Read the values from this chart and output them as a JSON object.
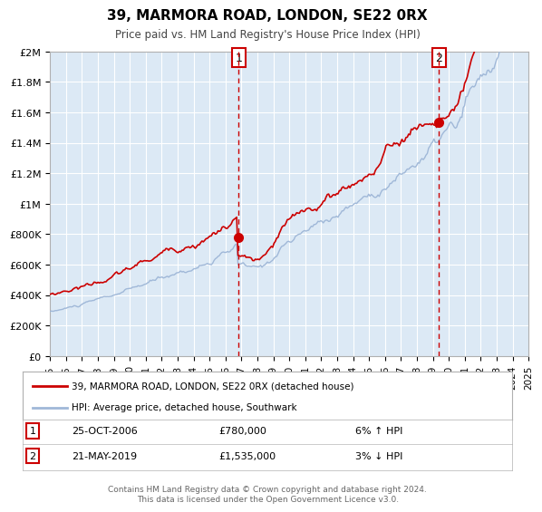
{
  "title": "39, MARMORA ROAD, LONDON, SE22 0RX",
  "subtitle": "Price paid vs. HM Land Registry's House Price Index (HPI)",
  "hpi_label": "HPI: Average price, detached house, Southwark",
  "property_label": "39, MARMORA ROAD, LONDON, SE22 0RX (detached house)",
  "annotation1_date": "25-OCT-2006",
  "annotation1_price": "£780,000",
  "annotation1_hpi": "6% ↑ HPI",
  "annotation2_date": "21-MAY-2019",
  "annotation2_price": "£1,535,000",
  "annotation2_hpi": "3% ↓ HPI",
  "marker1_x": 2006.82,
  "marker1_y": 780000,
  "marker2_x": 2019.39,
  "marker2_y": 1535000,
  "vline1_x": 2006.82,
  "vline2_x": 2019.39,
  "ylim": [
    0,
    2000000
  ],
  "xlim_start": 1995,
  "xlim_end": 2025,
  "background_color": "#ffffff",
  "plot_bg_color": "#dce9f5",
  "grid_color": "#ffffff",
  "hpi_line_color": "#a0b8d8",
  "property_line_color": "#cc0000",
  "vline_color": "#cc0000",
  "marker_color": "#cc0000",
  "footer": "Contains HM Land Registry data © Crown copyright and database right 2024.\nThis data is licensed under the Open Government Licence v3.0.",
  "yticks": [
    0,
    200000,
    400000,
    600000,
    800000,
    1000000,
    1200000,
    1400000,
    1600000,
    1800000,
    2000000
  ],
  "ytick_labels": [
    "£0",
    "£200K",
    "£400K",
    "£600K",
    "£800K",
    "£1M",
    "£1.2M",
    "£1.4M",
    "£1.6M",
    "£1.8M",
    "£2M"
  ],
  "xticks": [
    1995,
    1996,
    1997,
    1998,
    1999,
    2000,
    2001,
    2002,
    2003,
    2004,
    2005,
    2006,
    2007,
    2008,
    2009,
    2010,
    2011,
    2012,
    2013,
    2014,
    2015,
    2016,
    2017,
    2018,
    2019,
    2020,
    2021,
    2022,
    2023,
    2024,
    2025
  ]
}
